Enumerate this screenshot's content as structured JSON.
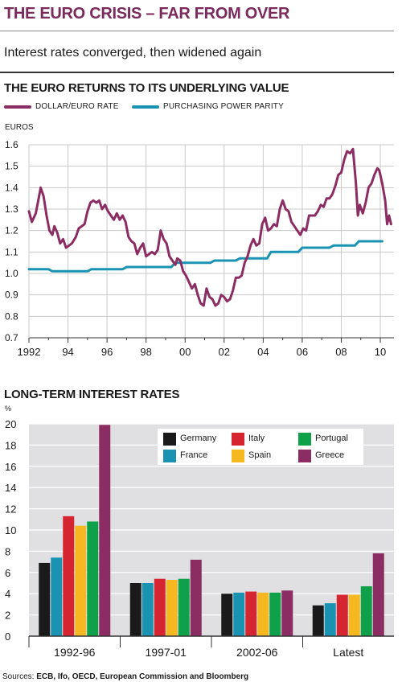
{
  "header": {
    "title": "THE EURO CRISIS – FAR FROM OVER",
    "subtitle": "Interest rates converged, then widened again"
  },
  "colors": {
    "title": "#7a2a5b",
    "dollar_euro": "#8b2d62",
    "ppp": "#1a93b3",
    "Germany": "#1a1a1a",
    "France": "#1a93b3",
    "Italy": "#d42530",
    "Spain": "#f5b820",
    "Portugal": "#0fa04a",
    "Greece": "#8b2d62",
    "panel_bg": "#e0e0e2"
  },
  "sources": {
    "prefix": "Sources: ",
    "text": "ECB, Ifo, OECD, European Commission and Bloomberg"
  },
  "chart_data": [
    {
      "type": "line",
      "title": "THE EURO RETURNS TO ITS UNDERLYING VALUE",
      "ylabel": "EUROS",
      "ylim": [
        0.7,
        1.6
      ],
      "yticks": [
        "1.6",
        "1.5",
        "1.4",
        "1.3",
        "1.2",
        "1.1",
        "1.0",
        "0.9",
        "0.8",
        "0.7"
      ],
      "xlim": [
        1992,
        2010.7
      ],
      "xticks": [
        "1992",
        "94",
        "96",
        "98",
        "00",
        "02",
        "04",
        "06",
        "08",
        "10"
      ],
      "grid": true,
      "legend_position": "top-left",
      "series": [
        {
          "name": "DOLLAR/EURO RATE",
          "points": [
            [
              1992.0,
              1.29
            ],
            [
              1992.15,
              1.24
            ],
            [
              1992.35,
              1.28
            ],
            [
              1992.5,
              1.35
            ],
            [
              1992.6,
              1.4
            ],
            [
              1992.75,
              1.36
            ],
            [
              1992.9,
              1.27
            ],
            [
              1993.05,
              1.2
            ],
            [
              1993.2,
              1.18
            ],
            [
              1993.3,
              1.22
            ],
            [
              1993.45,
              1.19
            ],
            [
              1993.6,
              1.14
            ],
            [
              1993.75,
              1.16
            ],
            [
              1993.9,
              1.12
            ],
            [
              1994.05,
              1.13
            ],
            [
              1994.2,
              1.14
            ],
            [
              1994.4,
              1.17
            ],
            [
              1994.55,
              1.21
            ],
            [
              1994.7,
              1.22
            ],
            [
              1994.85,
              1.23
            ],
            [
              1995.0,
              1.29
            ],
            [
              1995.15,
              1.33
            ],
            [
              1995.3,
              1.34
            ],
            [
              1995.45,
              1.33
            ],
            [
              1995.6,
              1.34
            ],
            [
              1995.75,
              1.3
            ],
            [
              1995.9,
              1.32
            ],
            [
              1996.05,
              1.29
            ],
            [
              1996.2,
              1.27
            ],
            [
              1996.35,
              1.25
            ],
            [
              1996.5,
              1.28
            ],
            [
              1996.65,
              1.25
            ],
            [
              1996.8,
              1.27
            ],
            [
              1996.95,
              1.24
            ],
            [
              1997.1,
              1.17
            ],
            [
              1997.25,
              1.15
            ],
            [
              1997.4,
              1.14
            ],
            [
              1997.55,
              1.09
            ],
            [
              1997.7,
              1.12
            ],
            [
              1997.85,
              1.14
            ],
            [
              1998.0,
              1.08
            ],
            [
              1998.15,
              1.09
            ],
            [
              1998.3,
              1.1
            ],
            [
              1998.45,
              1.09
            ],
            [
              1998.6,
              1.11
            ],
            [
              1998.75,
              1.2
            ],
            [
              1998.9,
              1.16
            ],
            [
              1999.05,
              1.14
            ],
            [
              1999.2,
              1.08
            ],
            [
              1999.35,
              1.06
            ],
            [
              1999.5,
              1.04
            ],
            [
              1999.6,
              1.07
            ],
            [
              1999.75,
              1.06
            ],
            [
              1999.9,
              1.01
            ],
            [
              2000.05,
              0.99
            ],
            [
              2000.2,
              0.96
            ],
            [
              2000.35,
              0.93
            ],
            [
              2000.5,
              0.95
            ],
            [
              2000.65,
              0.9
            ],
            [
              2000.8,
              0.86
            ],
            [
              2000.95,
              0.85
            ],
            [
              2001.1,
              0.93
            ],
            [
              2001.25,
              0.89
            ],
            [
              2001.4,
              0.88
            ],
            [
              2001.55,
              0.85
            ],
            [
              2001.7,
              0.86
            ],
            [
              2001.85,
              0.9
            ],
            [
              2002.0,
              0.89
            ],
            [
              2002.15,
              0.87
            ],
            [
              2002.3,
              0.88
            ],
            [
              2002.45,
              0.92
            ],
            [
              2002.6,
              0.98
            ],
            [
              2002.75,
              0.98
            ],
            [
              2002.9,
              0.99
            ],
            [
              2003.05,
              1.05
            ],
            [
              2003.2,
              1.08
            ],
            [
              2003.35,
              1.13
            ],
            [
              2003.5,
              1.16
            ],
            [
              2003.65,
              1.13
            ],
            [
              2003.8,
              1.14
            ],
            [
              2003.95,
              1.23
            ],
            [
              2004.1,
              1.26
            ],
            [
              2004.25,
              1.2
            ],
            [
              2004.4,
              1.21
            ],
            [
              2004.55,
              1.23
            ],
            [
              2004.7,
              1.22
            ],
            [
              2004.85,
              1.3
            ],
            [
              2005.0,
              1.34
            ],
            [
              2005.15,
              1.3
            ],
            [
              2005.3,
              1.29
            ],
            [
              2005.45,
              1.24
            ],
            [
              2005.6,
              1.22
            ],
            [
              2005.75,
              1.2
            ],
            [
              2005.9,
              1.18
            ],
            [
              2006.05,
              1.21
            ],
            [
              2006.2,
              1.2
            ],
            [
              2006.35,
              1.27
            ],
            [
              2006.5,
              1.27
            ],
            [
              2006.65,
              1.27
            ],
            [
              2006.8,
              1.29
            ],
            [
              2006.95,
              1.32
            ],
            [
              2007.1,
              1.31
            ],
            [
              2007.25,
              1.35
            ],
            [
              2007.4,
              1.35
            ],
            [
              2007.55,
              1.37
            ],
            [
              2007.7,
              1.41
            ],
            [
              2007.85,
              1.46
            ],
            [
              2008.0,
              1.47
            ],
            [
              2008.15,
              1.53
            ],
            [
              2008.3,
              1.57
            ],
            [
              2008.45,
              1.56
            ],
            [
              2008.6,
              1.58
            ],
            [
              2008.75,
              1.42
            ],
            [
              2008.85,
              1.27
            ],
            [
              2008.95,
              1.32
            ],
            [
              2009.1,
              1.28
            ],
            [
              2009.25,
              1.33
            ],
            [
              2009.4,
              1.4
            ],
            [
              2009.55,
              1.42
            ],
            [
              2009.7,
              1.46
            ],
            [
              2009.85,
              1.49
            ],
            [
              2009.95,
              1.48
            ],
            [
              2010.1,
              1.42
            ],
            [
              2010.25,
              1.34
            ],
            [
              2010.35,
              1.23
            ],
            [
              2010.45,
              1.27
            ],
            [
              2010.55,
              1.23
            ]
          ]
        },
        {
          "name": "PURCHASING POWER PARITY",
          "points": [
            [
              1992.0,
              1.02
            ],
            [
              1993.0,
              1.02
            ],
            [
              1993.2,
              1.01
            ],
            [
              1995.0,
              1.01
            ],
            [
              1995.2,
              1.02
            ],
            [
              1996.8,
              1.02
            ],
            [
              1997.0,
              1.03
            ],
            [
              1999.3,
              1.03
            ],
            [
              1999.5,
              1.05
            ],
            [
              2001.3,
              1.05
            ],
            [
              2001.5,
              1.06
            ],
            [
              2002.6,
              1.06
            ],
            [
              2002.8,
              1.07
            ],
            [
              2004.2,
              1.07
            ],
            [
              2004.4,
              1.1
            ],
            [
              2005.8,
              1.1
            ],
            [
              2006.0,
              1.12
            ],
            [
              2007.4,
              1.12
            ],
            [
              2007.6,
              1.13
            ],
            [
              2008.7,
              1.13
            ],
            [
              2008.9,
              1.15
            ],
            [
              2010.1,
              1.15
            ]
          ]
        }
      ]
    },
    {
      "type": "bar",
      "title": "LONG-TERM INTEREST RATES",
      "ylabel": "%",
      "ylim": [
        0,
        20
      ],
      "yticks": [
        "20",
        "18",
        "16",
        "14",
        "12",
        "10",
        "8",
        "6",
        "4",
        "2",
        "0"
      ],
      "categories": [
        "1992-96",
        "1997-01",
        "2002-06",
        "Latest"
      ],
      "legend_position": "top-right",
      "series": [
        {
          "name": "Germany",
          "values": [
            6.9,
            5.0,
            4.0,
            2.9
          ]
        },
        {
          "name": "France",
          "values": [
            7.4,
            5.0,
            4.1,
            3.1
          ]
        },
        {
          "name": "Italy",
          "values": [
            11.3,
            5.4,
            4.2,
            3.9
          ]
        },
        {
          "name": "Spain",
          "values": [
            10.4,
            5.3,
            4.1,
            3.9
          ]
        },
        {
          "name": "Portugal",
          "values": [
            10.8,
            5.4,
            4.1,
            4.7
          ]
        },
        {
          "name": "Greece",
          "values": [
            19.9,
            7.2,
            4.3,
            7.8
          ]
        }
      ]
    }
  ]
}
